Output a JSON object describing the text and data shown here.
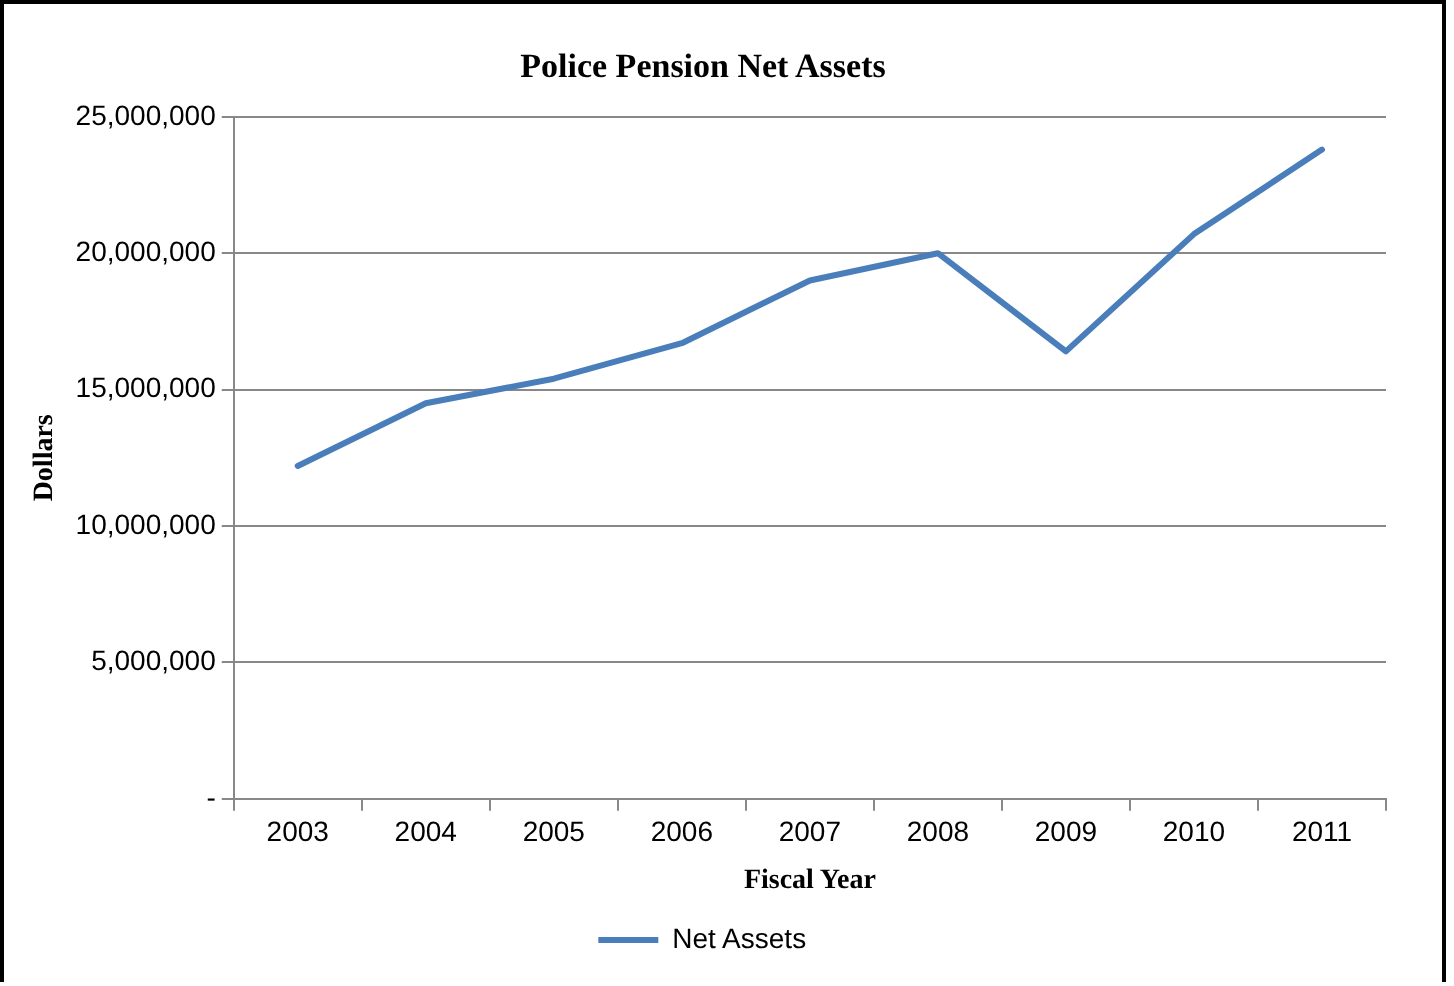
{
  "chart_data": {
    "type": "line",
    "title": "Police Pension Net Assets",
    "xlabel": "Fiscal Year",
    "ylabel": "Dollars",
    "categories": [
      "2003",
      "2004",
      "2005",
      "2006",
      "2007",
      "2008",
      "2009",
      "2010",
      "2011"
    ],
    "series": [
      {
        "name": "Net Assets",
        "color": "#4a7ebb",
        "values": [
          12200000,
          14500000,
          15400000,
          16700000,
          19000000,
          20000000,
          16400000,
          20700000,
          23800000
        ]
      }
    ],
    "ylim": [
      0,
      25000000
    ],
    "yticks": [
      {
        "value": 0,
        "label": "-"
      },
      {
        "value": 5000000,
        "label": "5,000,000"
      },
      {
        "value": 10000000,
        "label": "10,000,000"
      },
      {
        "value": 15000000,
        "label": "15,000,000"
      },
      {
        "value": 20000000,
        "label": "20,000,000"
      },
      {
        "value": 25000000,
        "label": "25,000,000"
      }
    ],
    "grid": "y",
    "legend": "bottom",
    "marker": "none",
    "line_style": "solid"
  }
}
